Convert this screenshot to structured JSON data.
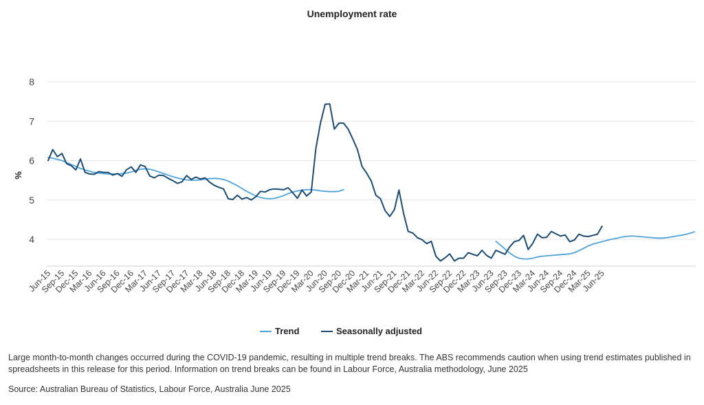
{
  "chart_data": {
    "type": "line",
    "title": "Unemployment rate",
    "ylabel": "%",
    "xlabel": "",
    "ylim": [
      3.2,
      8
    ],
    "yticks": [
      4,
      5,
      6,
      7,
      8
    ],
    "grid": true,
    "legend_position": "bottom",
    "tick_labels": [
      "Jun-15",
      "Sep-15",
      "Dec-15",
      "Mar-16",
      "Jun-16",
      "Sep-16",
      "Dec-16",
      "Mar-17",
      "Jun-17",
      "Sep-17",
      "Dec-17",
      "Mar-18",
      "Jun-18",
      "Sep-18",
      "Dec-18",
      "Mar-19",
      "Jun-19",
      "Sep-19",
      "Dec-19",
      "Mar-20",
      "Jun-20",
      "Sep-20",
      "Dec-20",
      "Mar-21",
      "Jun-21",
      "Sep-21",
      "Dec-21",
      "Mar-22",
      "Jun-22",
      "Sep-22",
      "Dec-22",
      "Mar-23",
      "Jun-23",
      "Sep-23",
      "Dec-23",
      "Mar-24",
      "Jun-24",
      "Sep-24",
      "Dec-24",
      "Mar-25",
      "Jun-25"
    ],
    "series": [
      {
        "name": "Trend",
        "color": "#4fa3d9",
        "x_start": "Jun-15",
        "values": [
          6.08,
          6.06,
          6.03,
          6.0,
          5.95,
          5.9,
          5.85,
          5.8,
          5.76,
          5.73,
          5.7,
          5.68,
          5.67,
          5.66,
          5.66,
          5.66,
          5.67,
          5.68,
          5.71,
          5.75,
          5.78,
          5.79,
          5.78,
          5.75,
          5.71,
          5.67,
          5.63,
          5.59,
          5.56,
          5.53,
          5.51,
          5.5,
          5.5,
          5.51,
          5.53,
          5.54,
          5.55,
          5.54,
          5.52,
          5.48,
          5.42,
          5.36,
          5.29,
          5.22,
          5.16,
          5.1,
          5.06,
          5.04,
          5.03,
          5.04,
          5.07,
          5.11,
          5.16,
          5.2,
          5.23,
          5.25,
          5.26,
          5.26,
          5.25,
          5.23,
          5.22,
          5.21,
          5.21,
          5.22,
          5.26,
          null,
          null,
          null,
          null,
          null,
          null,
          null,
          null,
          null,
          null,
          null,
          null,
          null,
          null,
          null,
          null,
          null,
          null,
          null,
          null,
          null,
          null,
          null,
          null,
          null,
          null,
          null,
          null,
          null,
          null,
          null,
          null,
          3.95,
          3.85,
          3.75,
          3.65,
          3.57,
          3.52,
          3.5,
          3.5,
          3.52,
          3.55,
          3.57,
          3.58,
          3.59,
          3.6,
          3.61,
          3.62,
          3.63,
          3.66,
          3.71,
          3.77,
          3.83,
          3.88,
          3.91,
          3.94,
          3.97,
          4.0,
          4.02,
          4.05,
          4.07,
          4.08,
          4.08,
          4.07,
          4.06,
          4.05,
          4.04,
          4.03,
          4.03,
          4.04,
          4.06,
          4.08,
          4.1,
          4.12,
          4.15,
          4.19
        ]
      },
      {
        "name": "Seasonally adjusted",
        "color": "#1b4a72",
        "x_start": "Jun-15",
        "values": [
          6.0,
          6.28,
          6.1,
          6.18,
          5.92,
          5.87,
          5.76,
          6.04,
          5.7,
          5.66,
          5.65,
          5.72,
          5.7,
          5.7,
          5.63,
          5.67,
          5.6,
          5.77,
          5.84,
          5.7,
          5.89,
          5.85,
          5.61,
          5.56,
          5.63,
          5.62,
          5.55,
          5.49,
          5.42,
          5.46,
          5.62,
          5.52,
          5.58,
          5.53,
          5.56,
          5.45,
          5.37,
          5.32,
          5.28,
          5.03,
          5.01,
          5.12,
          5.02,
          5.06,
          5.0,
          5.08,
          5.22,
          5.2,
          5.26,
          5.28,
          5.27,
          5.26,
          5.31,
          5.18,
          5.04,
          5.25,
          5.1,
          5.2,
          6.3,
          6.95,
          7.43,
          7.44,
          6.8,
          6.95,
          6.95,
          6.8,
          6.55,
          6.28,
          5.85,
          5.68,
          5.48,
          5.12,
          5.03,
          4.73,
          4.58,
          4.75,
          5.25,
          4.66,
          4.2,
          4.16,
          4.04,
          3.99,
          3.89,
          3.95,
          3.57,
          3.45,
          3.53,
          3.63,
          3.45,
          3.52,
          3.52,
          3.66,
          3.62,
          3.58,
          3.72,
          3.59,
          3.52,
          3.72,
          3.67,
          3.62,
          3.81,
          3.94,
          3.97,
          4.1,
          3.74,
          3.9,
          4.13,
          4.04,
          4.05,
          4.2,
          4.14,
          4.08,
          4.11,
          3.94,
          3.98,
          4.13,
          4.08,
          4.07,
          4.1,
          4.13,
          4.33
        ]
      }
    ]
  },
  "footnote": "Large month-to-month changes occurred during the COVID-19 pandemic, resulting in multiple trend breaks. The ABS recommends caution when using trend estimates published in spreadsheets in this release for this period. Information on trend breaks can be found in Labour Force, Australia methodology, June 2025",
  "source": "Source: Australian Bureau of Statistics, Labour Force, Australia June 2025"
}
